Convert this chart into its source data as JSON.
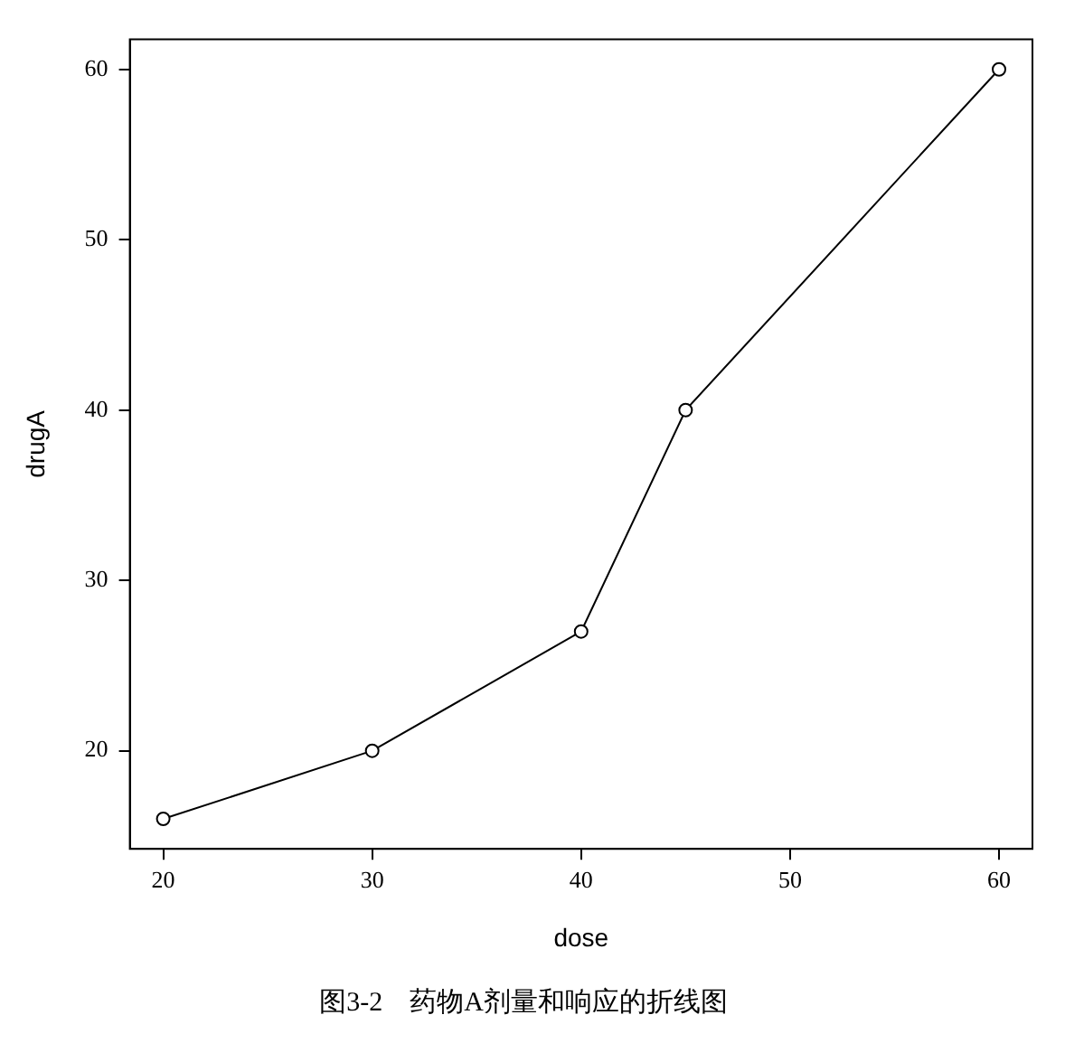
{
  "chart_data": {
    "type": "line",
    "title": "图3-2　药物A剂量和响应的折线图",
    "xlabel": "dose",
    "ylabel": "drugA",
    "x": [
      20,
      30,
      40,
      45,
      60
    ],
    "series": [
      {
        "color": "#000000",
        "values": [
          16,
          20,
          27,
          40,
          60
        ]
      }
    ],
    "xlim": [
      18.4,
      61.6
    ],
    "xticks": [
      20,
      30,
      40,
      50,
      60
    ],
    "ylim": [
      14.24,
      61.76
    ],
    "yticks": [
      20,
      30,
      40,
      50,
      60
    ],
    "grid": false,
    "legend": false,
    "marker": "circle",
    "line_style": "solid"
  }
}
